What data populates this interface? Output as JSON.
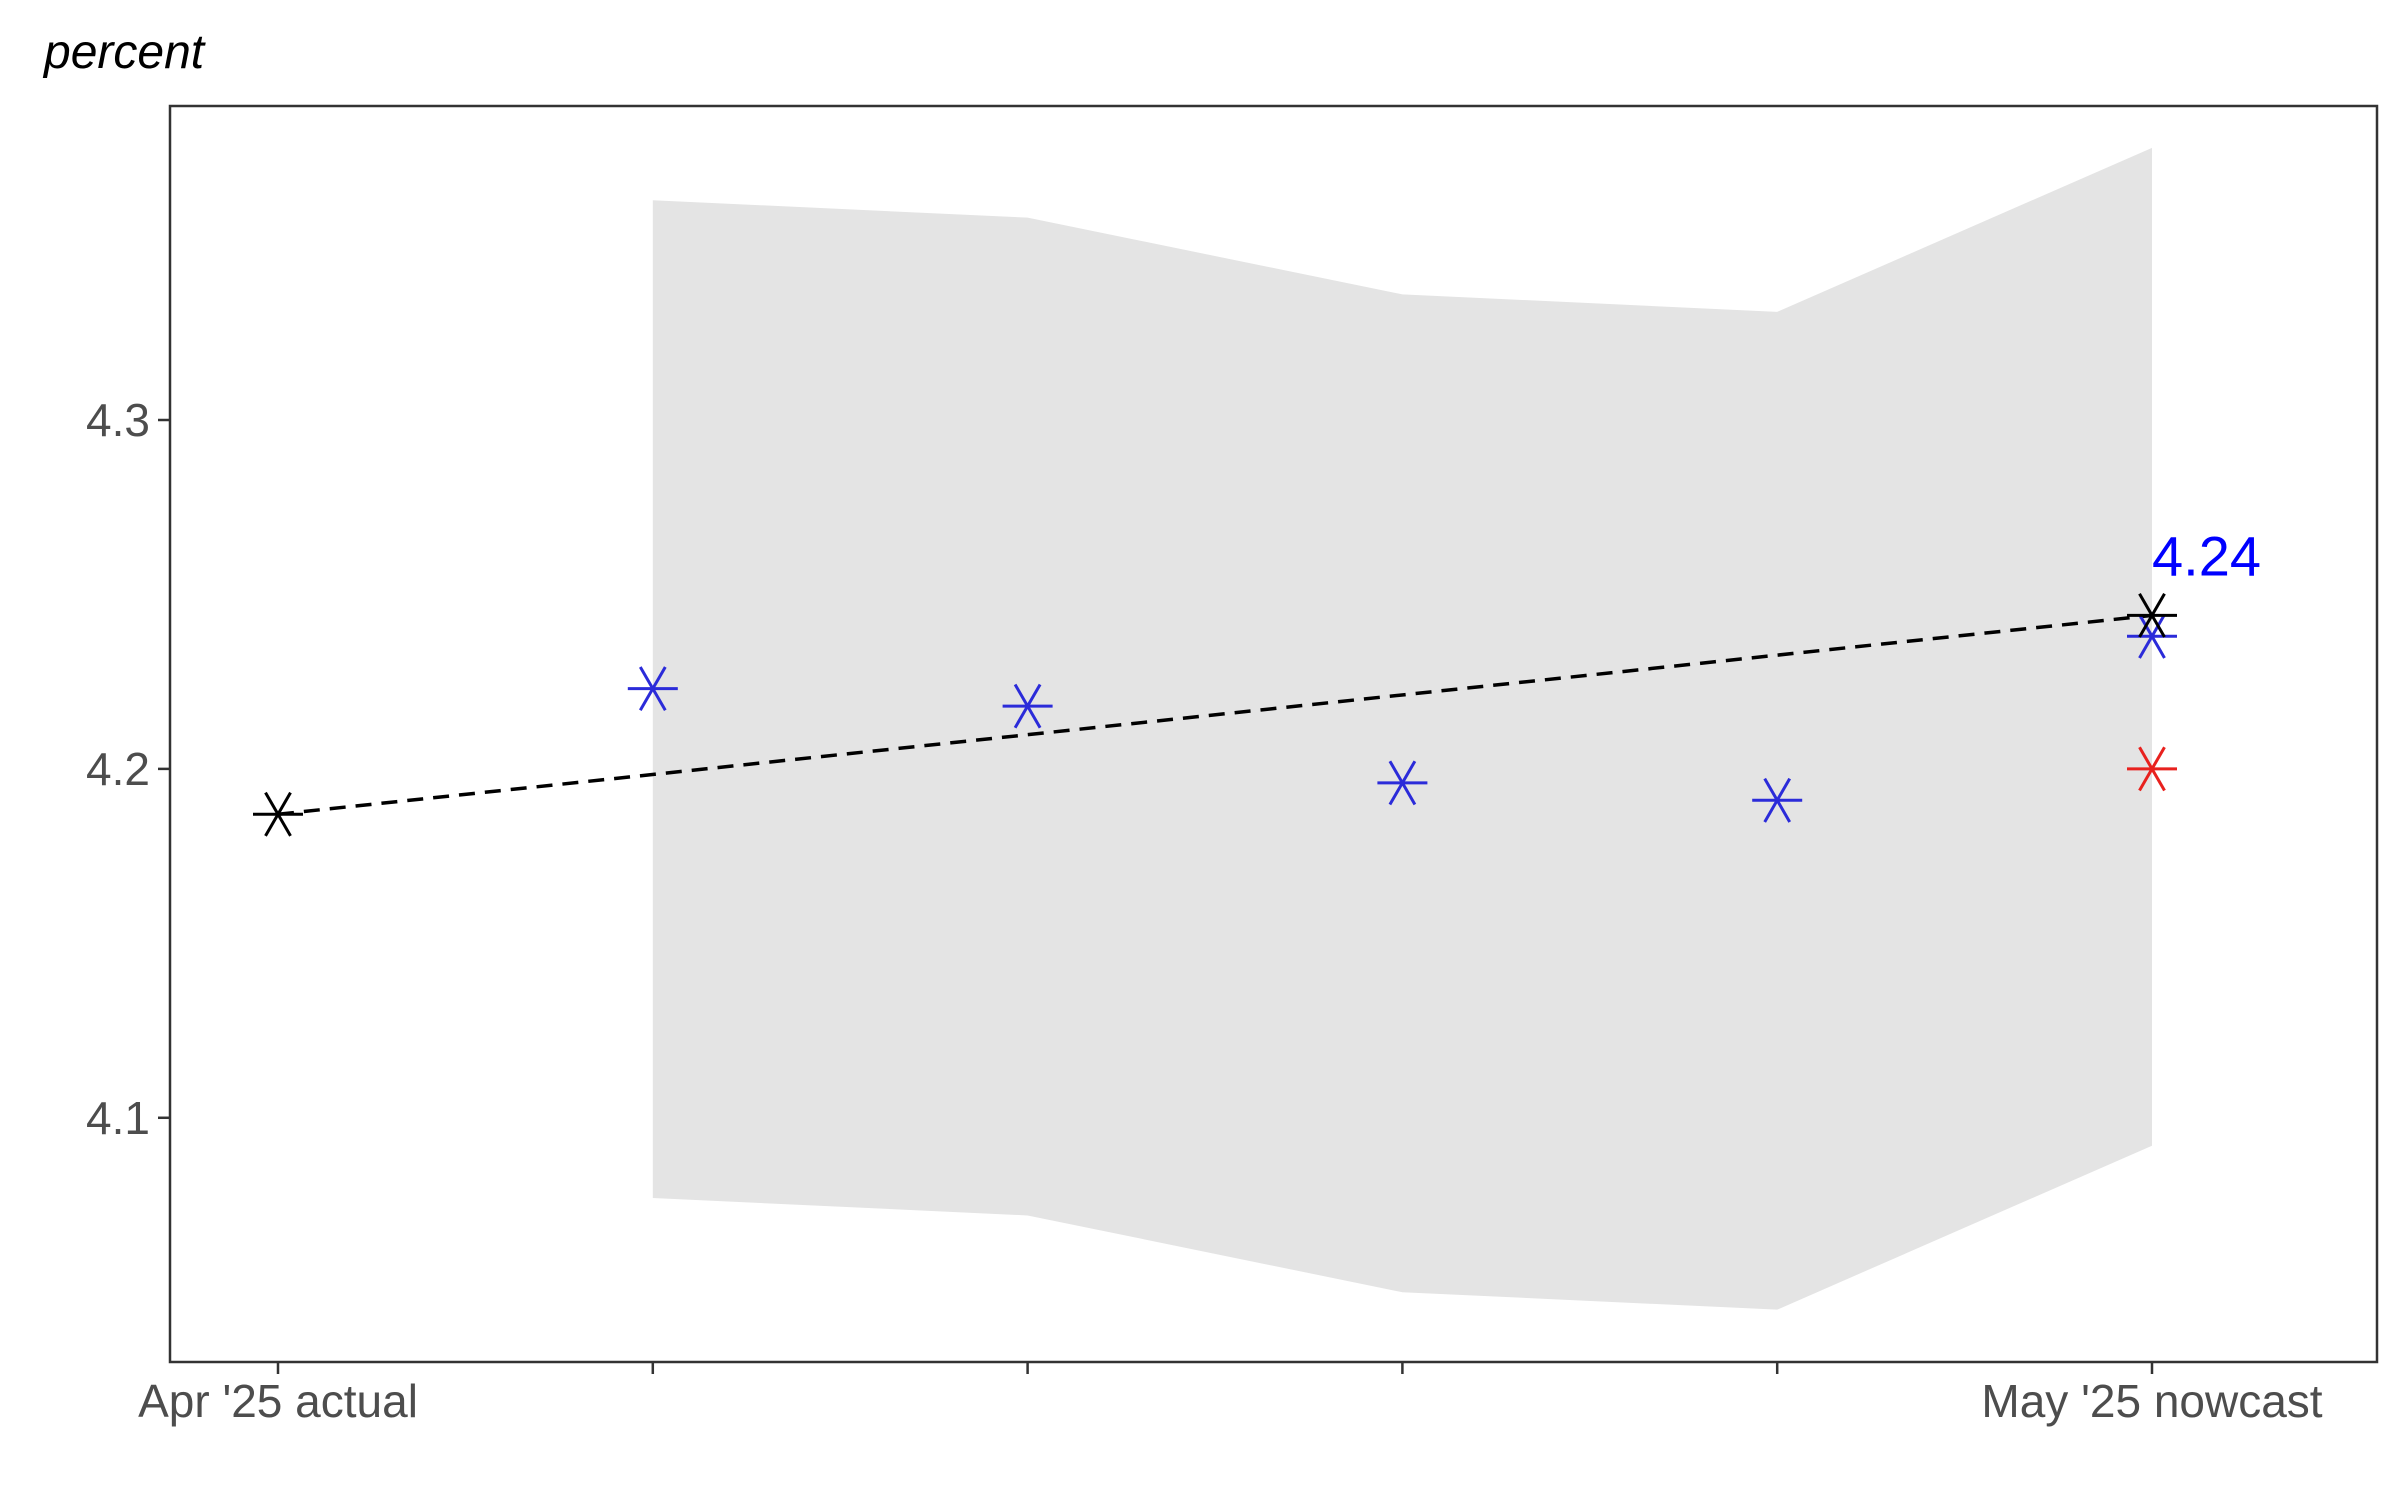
{
  "chart_data": {
    "type": "scatter",
    "title": "",
    "xlabel": "",
    "ylabel": "percent",
    "x_ticks": [
      "Apr '25 actual",
      "",
      "",
      "",
      "",
      "May '25 nowcast"
    ],
    "ylim": [
      4.03,
      4.39
    ],
    "y_ticks": [
      "4.1",
      "4.2",
      "4.3"
    ],
    "grid": false,
    "colors": {
      "actual": "#000000",
      "nowcast": "#2b2bd9",
      "alternative": "#e8211e",
      "band": "#e4e4e4",
      "label": "#0000ff",
      "axis": "#333333",
      "tick_text": "#4d4d4d"
    },
    "band": {
      "x": [
        1,
        2,
        3,
        4,
        5
      ],
      "upper": [
        4.363,
        4.358,
        4.336,
        4.331,
        4.378
      ],
      "lower": [
        4.077,
        4.072,
        4.05,
        4.045,
        4.092
      ]
    },
    "dashed_line": {
      "x": [
        0,
        5
      ],
      "y": [
        4.187,
        4.244
      ]
    },
    "series": [
      {
        "role": "actual",
        "x": [
          0,
          5
        ],
        "y": [
          4.187,
          4.244
        ],
        "marker": "asterisk"
      },
      {
        "role": "nowcast",
        "x": [
          1,
          2,
          3,
          4,
          5
        ],
        "y": [
          4.223,
          4.218,
          4.196,
          4.191,
          4.238
        ],
        "marker": "asterisk"
      },
      {
        "role": "alternative",
        "x": [
          5
        ],
        "y": [
          4.2
        ],
        "marker": "asterisk"
      }
    ],
    "annotations": [
      {
        "text": "4.24",
        "x": 5,
        "y": 4.244,
        "color": "#0000ff"
      }
    ]
  }
}
